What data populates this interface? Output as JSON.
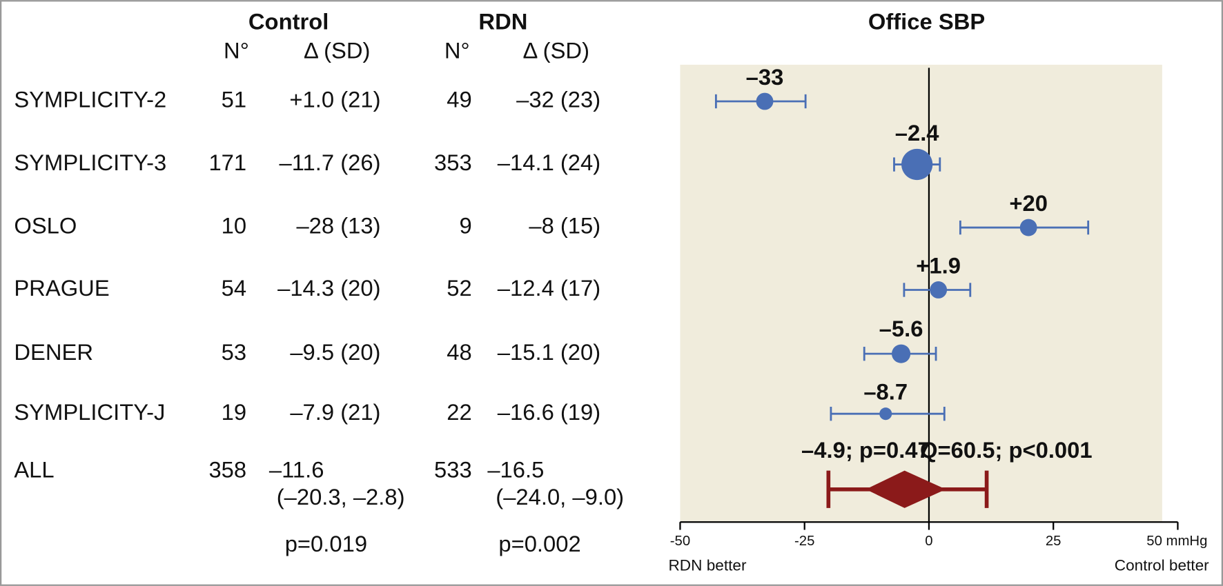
{
  "table": {
    "headers": {
      "control": "Control",
      "rdn": "RDN",
      "n": "N°",
      "delta": "Δ (SD)"
    },
    "rows": [
      [
        "SYMPLICITY-2",
        "51",
        "+1.0 (21)",
        "49",
        "–32 (23)"
      ],
      [
        "SYMPLICITY-3",
        "171",
        "–11.7 (26)",
        "353",
        "–14.1 (24)"
      ],
      [
        "OSLO",
        "10",
        "–28 (13)",
        "9",
        "–8 (15)"
      ],
      [
        "PRAGUE",
        "54",
        "–14.3 (20)",
        "52",
        "–12.4 (17)"
      ],
      [
        "DENER",
        "53",
        "–9.5 (20)",
        "48",
        "–15.1 (20)"
      ],
      [
        "SYMPLICITY-J",
        "19",
        "–7.9 (21)",
        "22",
        "–16.6 (19)"
      ]
    ],
    "overall": [
      "ALL",
      "358",
      "–11.6",
      "(–20.3, –2.8)",
      "533",
      "–16.5",
      "(–24.0, –9.0)"
    ],
    "p_values": [
      "p=0.019",
      "p=0.002"
    ]
  },
  "chart_data": {
    "type": "forest",
    "title": "Office SBP",
    "values": [
      -33,
      -2.4,
      20,
      1.9,
      -5.6,
      -8.7
    ],
    "value_labels": [
      "–33",
      "–2.4",
      "+20",
      "+1.9",
      "–5.6",
      "–8.7"
    ],
    "ci_low": [
      -42.8,
      -7,
      6.3,
      -5,
      -13,
      -19.7
    ],
    "ci_high": [
      -24.8,
      2.2,
      32,
      8.3,
      1.4,
      3.1
    ],
    "weights": [
      11,
      20,
      11,
      11,
      12,
      8
    ],
    "color": "#4a6fb5",
    "overall": {
      "value": -4.9,
      "ci": [
        -12.7,
        3.4
      ],
      "pi": [
        -20.2,
        11.6
      ],
      "color": "#8b1a1a"
    },
    "annotations": [
      "–4.9; p=0.47",
      "Q=60.5; p<0.001"
    ],
    "xlim": [
      -50,
      50
    ],
    "xticks": [
      -50,
      -25,
      0,
      25,
      {
        "value": 50,
        "label": "50 mmHg"
      }
    ],
    "xlabel_left": "RDN better",
    "xlabel_right": "Control better"
  }
}
